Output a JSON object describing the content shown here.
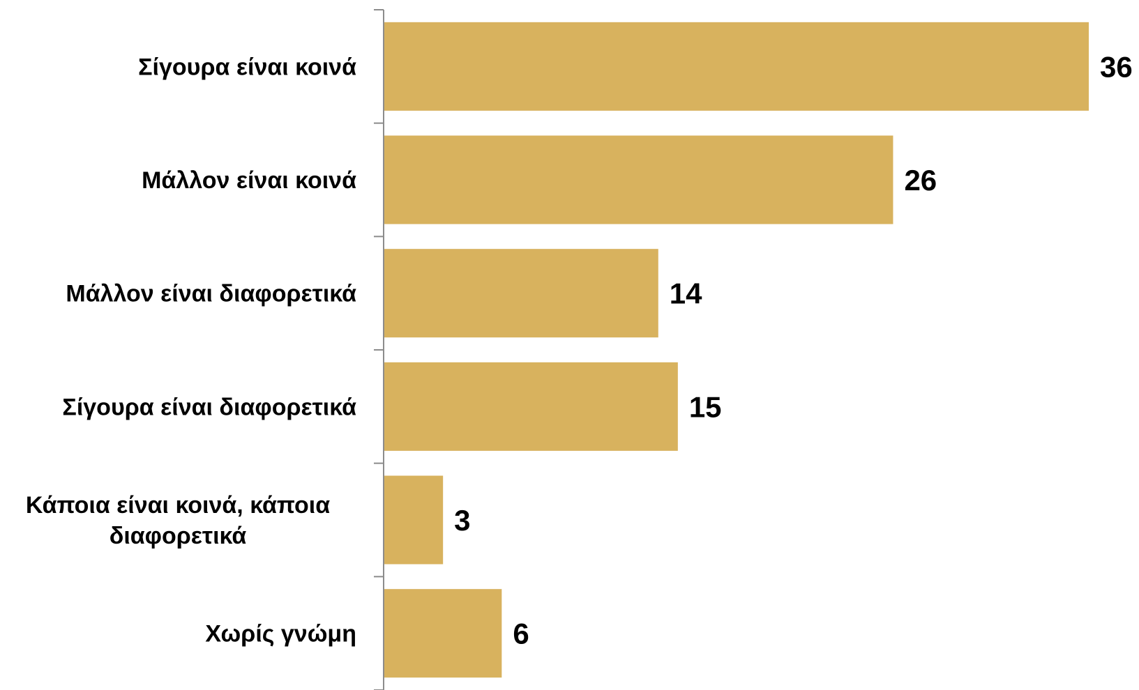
{
  "chart_data": {
    "type": "bar",
    "orientation": "horizontal",
    "categories": [
      [
        "Σίγουρα είναι κοινά"
      ],
      [
        "Μάλλον είναι κοινά"
      ],
      [
        "Μάλλον είναι διαφορετικά"
      ],
      [
        "Σίγουρα είναι διαφορετικά"
      ],
      [
        "Κάποια είναι κοινά, κάποια",
        "διαφορετικά"
      ],
      [
        "Χωρίς γνώμη"
      ]
    ],
    "values": [
      36,
      26,
      14,
      15,
      3,
      6
    ],
    "data_labels": [
      "36",
      "26",
      "14",
      "15",
      "3",
      "6"
    ],
    "xlim": [
      0,
      36
    ],
    "grid": false,
    "legend": "none",
    "colors": {
      "bar": "#D8B25E",
      "axis": "#8C8C8C",
      "text": "#000000"
    }
  }
}
